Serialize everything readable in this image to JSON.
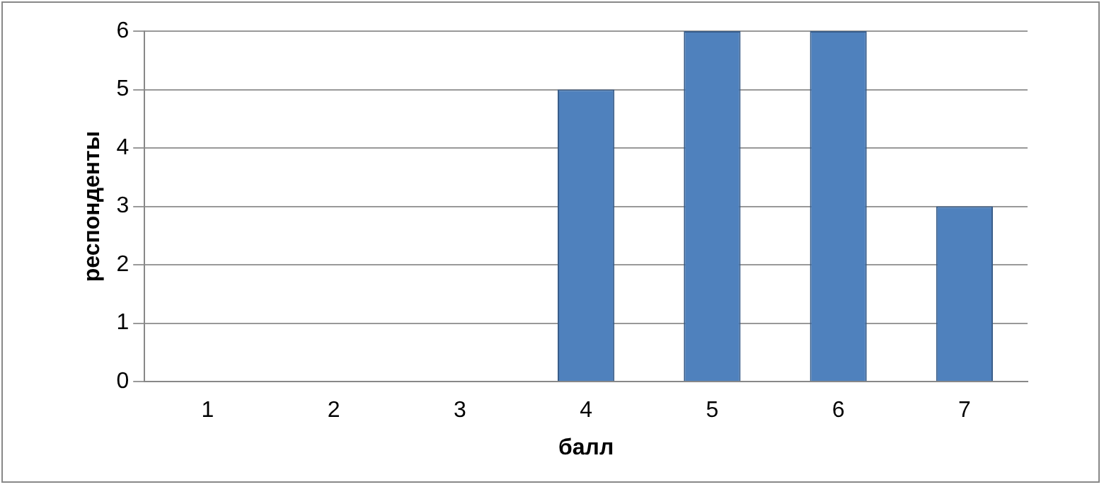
{
  "chart_data": {
    "type": "bar",
    "xlabel": "балл",
    "ylabel": "респонденты",
    "categories": [
      "1",
      "2",
      "3",
      "4",
      "5",
      "6",
      "7"
    ],
    "values": [
      0,
      0,
      0,
      5,
      6,
      6,
      3
    ],
    "color": "#4f81bd",
    "ylim": [
      0,
      6
    ],
    "yticks": [
      0,
      1,
      2,
      3,
      4,
      5,
      6
    ],
    "grid": "y",
    "legend": false
  }
}
